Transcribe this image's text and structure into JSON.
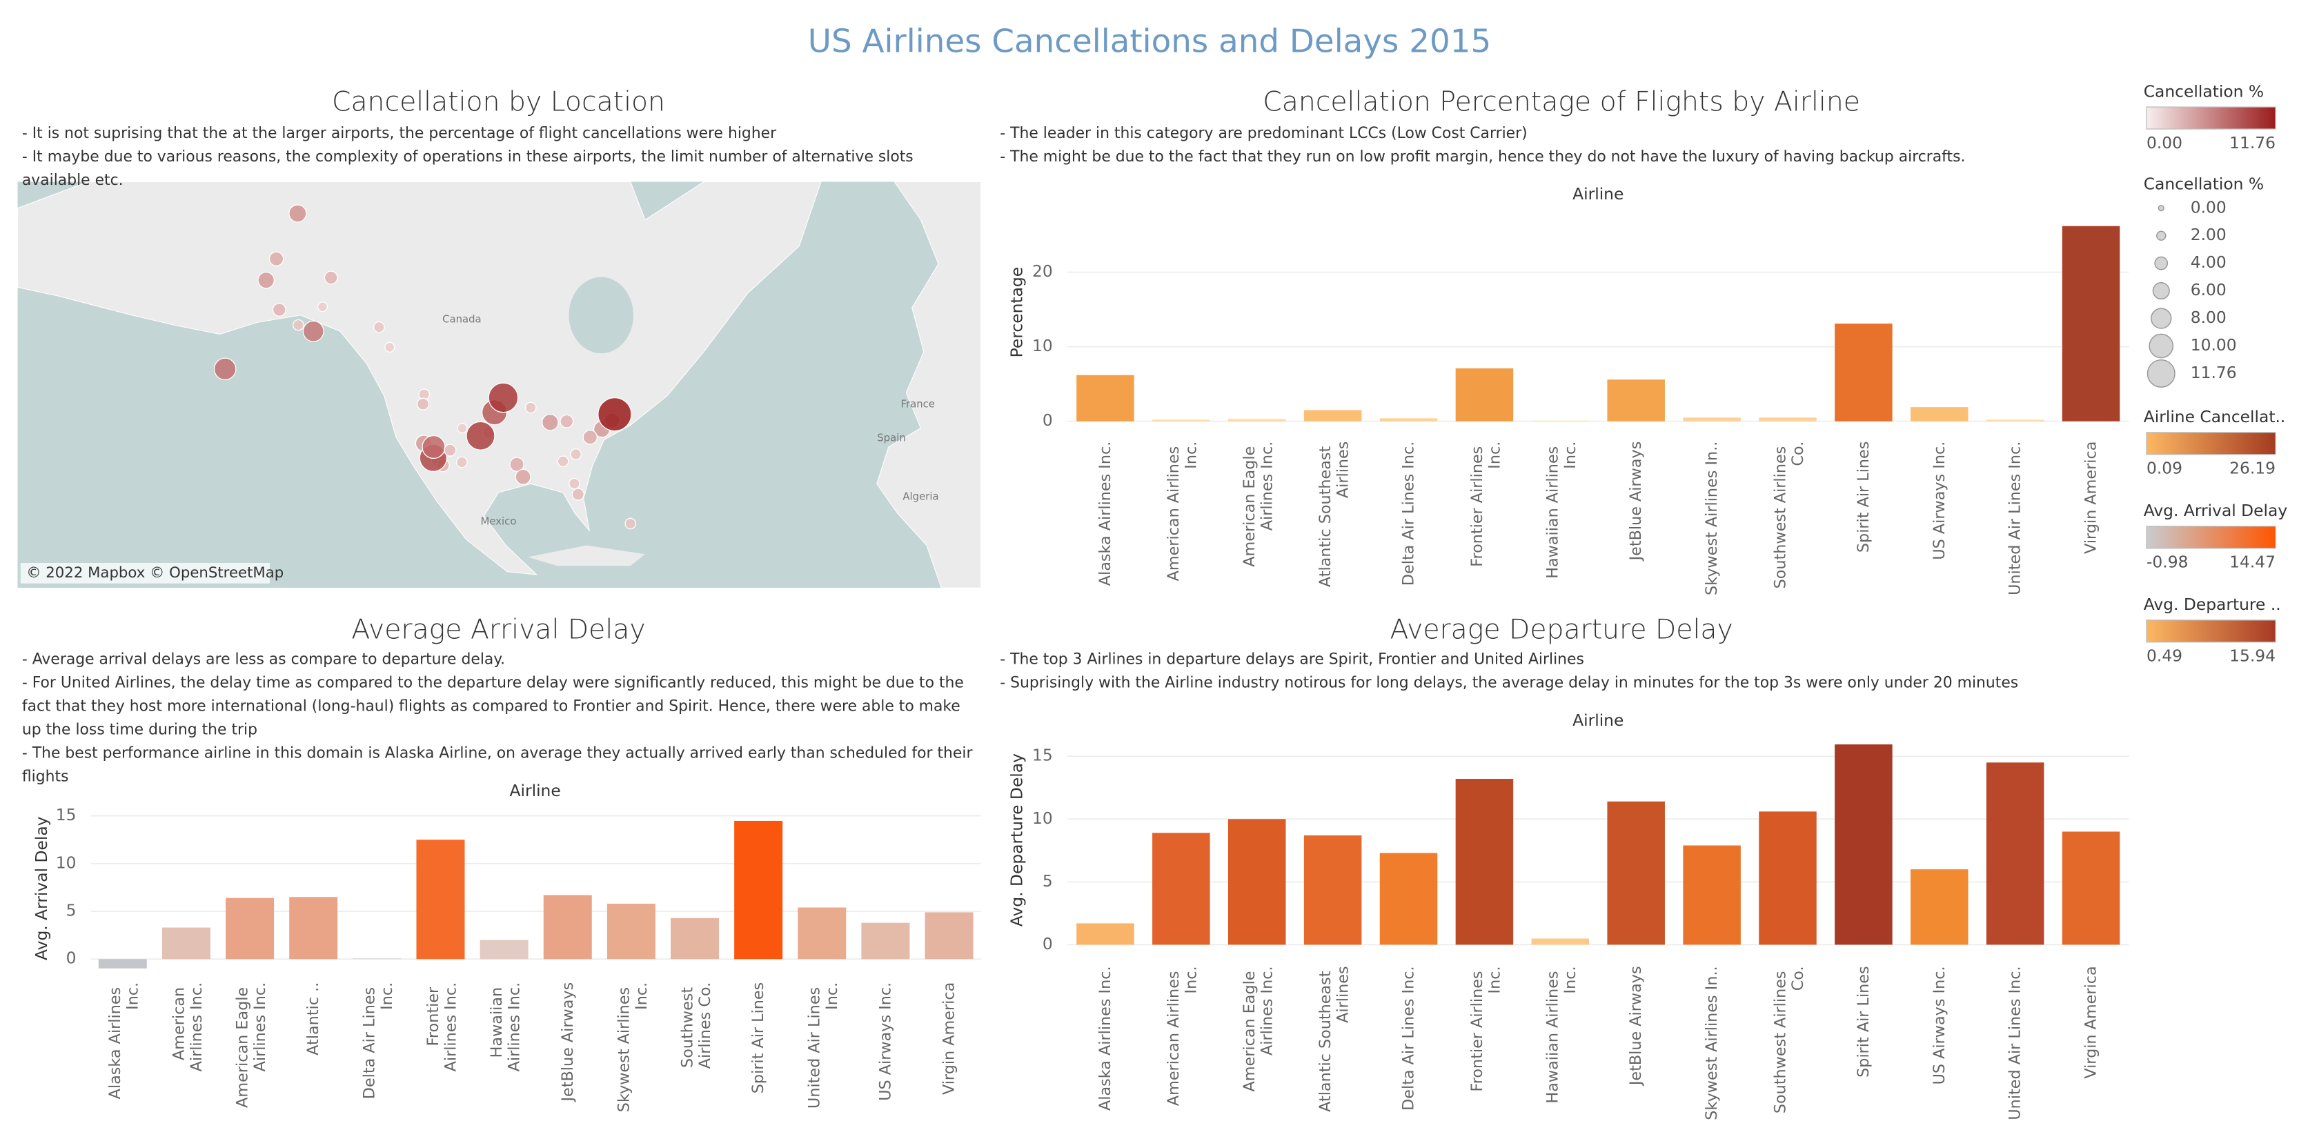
{
  "title": "US Airlines Cancellations and Delays 2015",
  "chart_data": [
    {
      "type": "map",
      "title": "Cancellation by Location",
      "notes": [
        "- It is not suprising that the at the larger airports, the percentage of flight cancellations were higher",
        "- It maybe due to various reasons, the complexity of operations in these airports, the limit number of alternative slots available etc."
      ],
      "x": [
        -156.8,
        -147.7,
        -162.6,
        -165.4,
        -161.8,
        -156.6,
        -176.6,
        -150.0,
        -152.5,
        -134.6,
        -131.7,
        -122.3,
        -122.6,
        -122.4,
        -118.4,
        -117.2,
        -119.8,
        -119.7,
        -115.2,
        -112.0,
        -111.9,
        -104.7,
        -97.0,
        -95.3,
        -93.2,
        -87.9,
        -83.4,
        -84.4,
        -80.3,
        -81.3,
        -80.9,
        -73.8,
        -71.0,
        -77.0,
        -70.3,
        -103.1,
        -106.9,
        -100.7,
        -66.0
      ],
      "y": [
        71.3,
        64.8,
        66.9,
        64.5,
        60.8,
        58.7,
        51.9,
        61.2,
        57.8,
        58.4,
        55.4,
        47.4,
        45.6,
        37.6,
        33.9,
        32.7,
        34.4,
        36.8,
        36.1,
        33.4,
        40.8,
        39.9,
        32.9,
        30.0,
        44.9,
        42.0,
        42.2,
        33.6,
        25.8,
        28.4,
        35.2,
        40.6,
        42.4,
        38.9,
        43.6,
        44.0,
        39.2,
        46.8,
        18.4
      ],
      "values": [
        4.5,
        2.5,
        3,
        4,
        2.5,
        1.5,
        6.5,
        1,
        6,
        1.5,
        1,
        1.5,
        2,
        4,
        3,
        2.5,
        9,
        7,
        2,
        1.5,
        1,
        2,
        3,
        3.5,
        1.5,
        4,
        2.5,
        1.5,
        2,
        1.5,
        1.5,
        4,
        3.5,
        3,
        11.76,
        8,
        9.5,
        10,
        1.5
      ],
      "color_range": [
        "#f3dcd9",
        "#9b1c1c"
      ],
      "labels": [
        "Canada",
        "Mexico",
        "France",
        "Spain",
        "Algeria"
      ],
      "attribution": "© 2022 Mapbox © OpenStreetMap"
    },
    {
      "type": "bar",
      "title": "Cancellation Percentage of Flights by Airline",
      "notes": [
        "- The leader in this category are predominant LCCs (Low Cost Carrier)",
        "- The might be due to the fact that they run on low profit margin, hence they do not have the luxury of having backup aircrafts."
      ],
      "x_label": "Airline",
      "y_label": "Percentage",
      "categories": [
        "Alaska Airlines Inc.",
        "American Airlines Inc.",
        "American Eagle Airlines Inc.",
        "Atlantic Southeast Airlines",
        "Delta Air Lines Inc.",
        "Frontier Airlines Inc.",
        "Hawaiian Airlines Inc.",
        "JetBlue Airways",
        "Skywest Airlines In..",
        "Southwest Airlines Co.",
        "Spirit Air Lines",
        "US Airways Inc.",
        "United Air Lines Inc.",
        "Virgin America"
      ],
      "values": [
        6.2,
        0.2,
        0.3,
        1.5,
        0.4,
        7.1,
        0.09,
        5.6,
        0.5,
        0.5,
        13.1,
        1.9,
        0.2,
        26.19
      ],
      "colors": [
        "#f4a04a",
        "#fdd9a6",
        "#fdd9a6",
        "#fbbf74",
        "#fcd29a",
        "#f29d45",
        "#fde0b3",
        "#f4a44d",
        "#fcd29a",
        "#fcd29a",
        "#e8722c",
        "#fbbf74",
        "#fdd9a6",
        "#a8412a"
      ],
      "ylim": [
        -1.5,
        28
      ],
      "yticks": [
        0,
        10,
        20
      ],
      "grid": true
    },
    {
      "type": "bar",
      "title": "Average Arrival Delay",
      "notes": [
        "- Average arrival delays are less as compare to departure delay.",
        "- For United Airlines, the delay time as compared to the departure delay were significantly reduced, this might be due to the fact that they host more international (long-haul) flights as compared to Frontier and Spirit. Hence, there were able to make up the loss time during the trip",
        "- The best performance airline in this domain is Alaska Airline, on average they actually arrived early than scheduled for their flights"
      ],
      "x_label": "Airline",
      "y_label": "Avg. Arrival Delay",
      "categories": [
        "Alaska Airlines Inc.",
        "American Airlines Inc.",
        "American Eagle Airlines Inc.",
        "Atlantic ..",
        "Delta Air Lines Inc.",
        "Frontier Airlines Inc.",
        "Hawaiian Airlines Inc.",
        "JetBlue Airways",
        "Skywest Airlines Inc.",
        "Southwest Airlines Co.",
        "Spirit Air Lines",
        "United Air Lines Inc.",
        "US Airways Inc.",
        "Virgin America"
      ],
      "values": [
        -0.98,
        3.3,
        6.4,
        6.5,
        0.1,
        12.5,
        2.0,
        6.7,
        5.8,
        4.3,
        14.47,
        5.4,
        3.8,
        4.9
      ],
      "colors": [
        "#c3c7cc",
        "#e2c0b3",
        "#e9a487",
        "#e9a487",
        "#dddddd",
        "#f56b2a",
        "#e2cbc2",
        "#e9a487",
        "#e9ab8e",
        "#e4b6a2",
        "#fb560d",
        "#e9ab8e",
        "#e4bba9",
        "#e4b4a0"
      ],
      "ylim": [
        -1.5,
        16
      ],
      "yticks": [
        0,
        5,
        10,
        15
      ],
      "grid": true
    },
    {
      "type": "bar",
      "title": "Average Departure Delay",
      "notes": [
        "- The top 3 Airlines in departure delays are Spirit, Frontier and United Airlines",
        "- Suprisingly with the Airline industry notirous for long delays, the average delay in minutes for the top 3s were only under 20 minutes"
      ],
      "x_label": "Airline",
      "y_label": "Avg. Departure Delay",
      "categories": [
        "Alaska Airlines Inc.",
        "American Airlines Inc.",
        "American Eagle Airlines Inc.",
        "Atlantic Southeast Airlines",
        "Delta Air Lines Inc.",
        "Frontier Airlines Inc.",
        "Hawaiian Airlines Inc.",
        "JetBlue Airways",
        "Skywest Airlines In..",
        "Southwest Airlines Co.",
        "Spirit Air Lines",
        "US Airways Inc.",
        "United Air Lines Inc.",
        "Virgin America"
      ],
      "values": [
        1.7,
        8.9,
        10.0,
        8.7,
        7.3,
        13.2,
        0.49,
        11.4,
        7.9,
        10.6,
        15.94,
        6.0,
        14.5,
        9.0
      ],
      "colors": [
        "#f9b46a",
        "#e1622a",
        "#dc5c25",
        "#e4692a",
        "#ef7d2c",
        "#bc4a24",
        "#fdc989",
        "#c95427",
        "#ea7229",
        "#d75a26",
        "#a63a25",
        "#f28a32",
        "#b9482a",
        "#e3692a"
      ],
      "ylim": [
        -1,
        16.5
      ],
      "yticks": [
        0,
        5,
        10,
        15
      ],
      "grid": true
    }
  ],
  "legends": [
    {
      "type": "gradient",
      "title": "Cancellation %",
      "labels": [
        "0.00",
        "11.76"
      ],
      "colors": [
        "#f7eeee",
        "#9b1c1c"
      ]
    },
    {
      "type": "size",
      "title": "Cancellation %",
      "labels": [
        "0.00",
        "2.00",
        "4.00",
        "6.00",
        "8.00",
        "10.00",
        "11.76"
      ]
    },
    {
      "type": "gradient",
      "title": "Airline Cancellat..",
      "labels": [
        "0.09",
        "26.19"
      ],
      "colors": [
        "#fdb863",
        "#a33b20"
      ]
    },
    {
      "type": "gradient",
      "title": "Avg. Arrival Delay",
      "labels": [
        "-0.98",
        "14.47"
      ],
      "colors": [
        "#c9ccd0",
        "#ff5500"
      ]
    },
    {
      "type": "gradient",
      "title": "Avg. Departure ..",
      "labels": [
        "0.49",
        "15.94"
      ],
      "colors": [
        "#fdb863",
        "#a63a25"
      ]
    }
  ]
}
